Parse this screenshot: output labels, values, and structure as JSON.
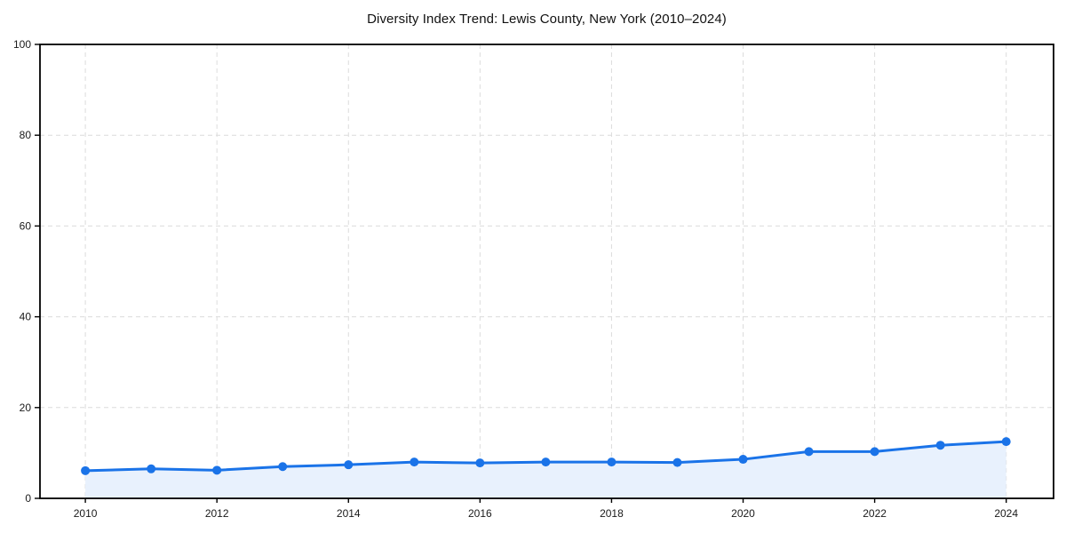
{
  "chart_data": {
    "type": "line",
    "title": "Diversity Index Trend: Lewis County, New York (2010–2024)",
    "x": [
      2010,
      2011,
      2012,
      2013,
      2014,
      2015,
      2016,
      2017,
      2018,
      2019,
      2020,
      2021,
      2022,
      2023,
      2024
    ],
    "series": [
      {
        "name": "Diversity Index",
        "values": [
          6.1,
          6.5,
          6.2,
          7.0,
          7.4,
          8.0,
          7.8,
          8.0,
          8.0,
          7.9,
          8.6,
          10.3,
          10.3,
          11.7,
          12.5
        ]
      }
    ],
    "xlabel": "",
    "ylabel": "",
    "xlim": [
      2009.31,
      2024.72
    ],
    "ylim": [
      0,
      100
    ],
    "xticks": [
      2010,
      2012,
      2014,
      2016,
      2018,
      2020,
      2022,
      2024
    ],
    "yticks": [
      0,
      20,
      40,
      60,
      80,
      100
    ],
    "grid": true,
    "grid_style": "dashed",
    "legend": "none",
    "colors": {
      "line": "#1a73e8",
      "marker": "#1a73e8",
      "area_fill": "#e8f1fd",
      "grid": "#dcdcdc",
      "axis": "#000000",
      "tick_label": "#1a1a1a",
      "title": "#111111",
      "background": "#ffffff"
    }
  }
}
